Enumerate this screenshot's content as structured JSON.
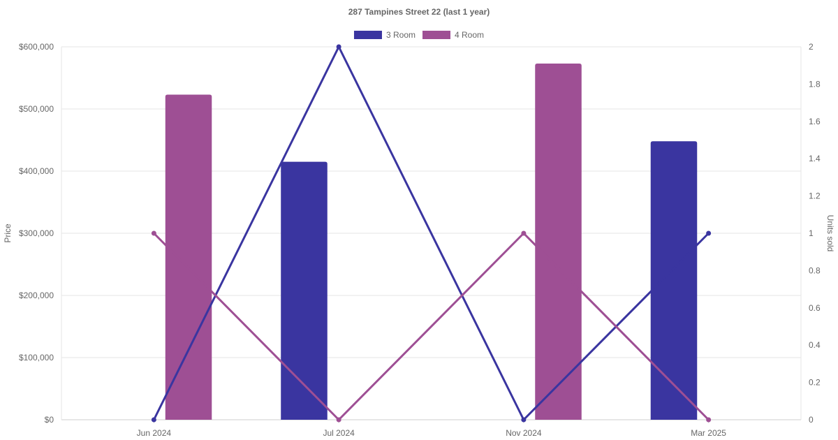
{
  "chart_data": {
    "type": "bar",
    "title": "287 Tampines Street 22 (last 1 year)",
    "categories": [
      "Jun 2024",
      "Jul 2024",
      "Nov 2024",
      "Mar 2025"
    ],
    "price_axis": {
      "label": "Price",
      "min": 0,
      "max": 600000,
      "ticks": [
        "$0",
        "$100,000",
        "$200,000",
        "$300,000",
        "$400,000",
        "$500,000",
        "$600,000"
      ]
    },
    "units_axis": {
      "label": "Units sold",
      "min": 0,
      "max": 2,
      "ticks": [
        "0",
        "0.2",
        "0.4",
        "0.6",
        "0.8",
        "1",
        "1.2",
        "1.4",
        "1.6",
        "1.8",
        "2"
      ]
    },
    "legend_position": "top-center",
    "grid": true,
    "series": [
      {
        "name": "3 Room",
        "color": "#3a35a0",
        "price_values": [
          null,
          415000,
          null,
          448000
        ],
        "units_sold": [
          0,
          2,
          0,
          1
        ]
      },
      {
        "name": "4 Room",
        "color": "#9e4f94",
        "price_values": [
          523000,
          null,
          573000,
          null
        ],
        "units_sold": [
          1,
          0,
          1,
          0
        ]
      }
    ]
  }
}
